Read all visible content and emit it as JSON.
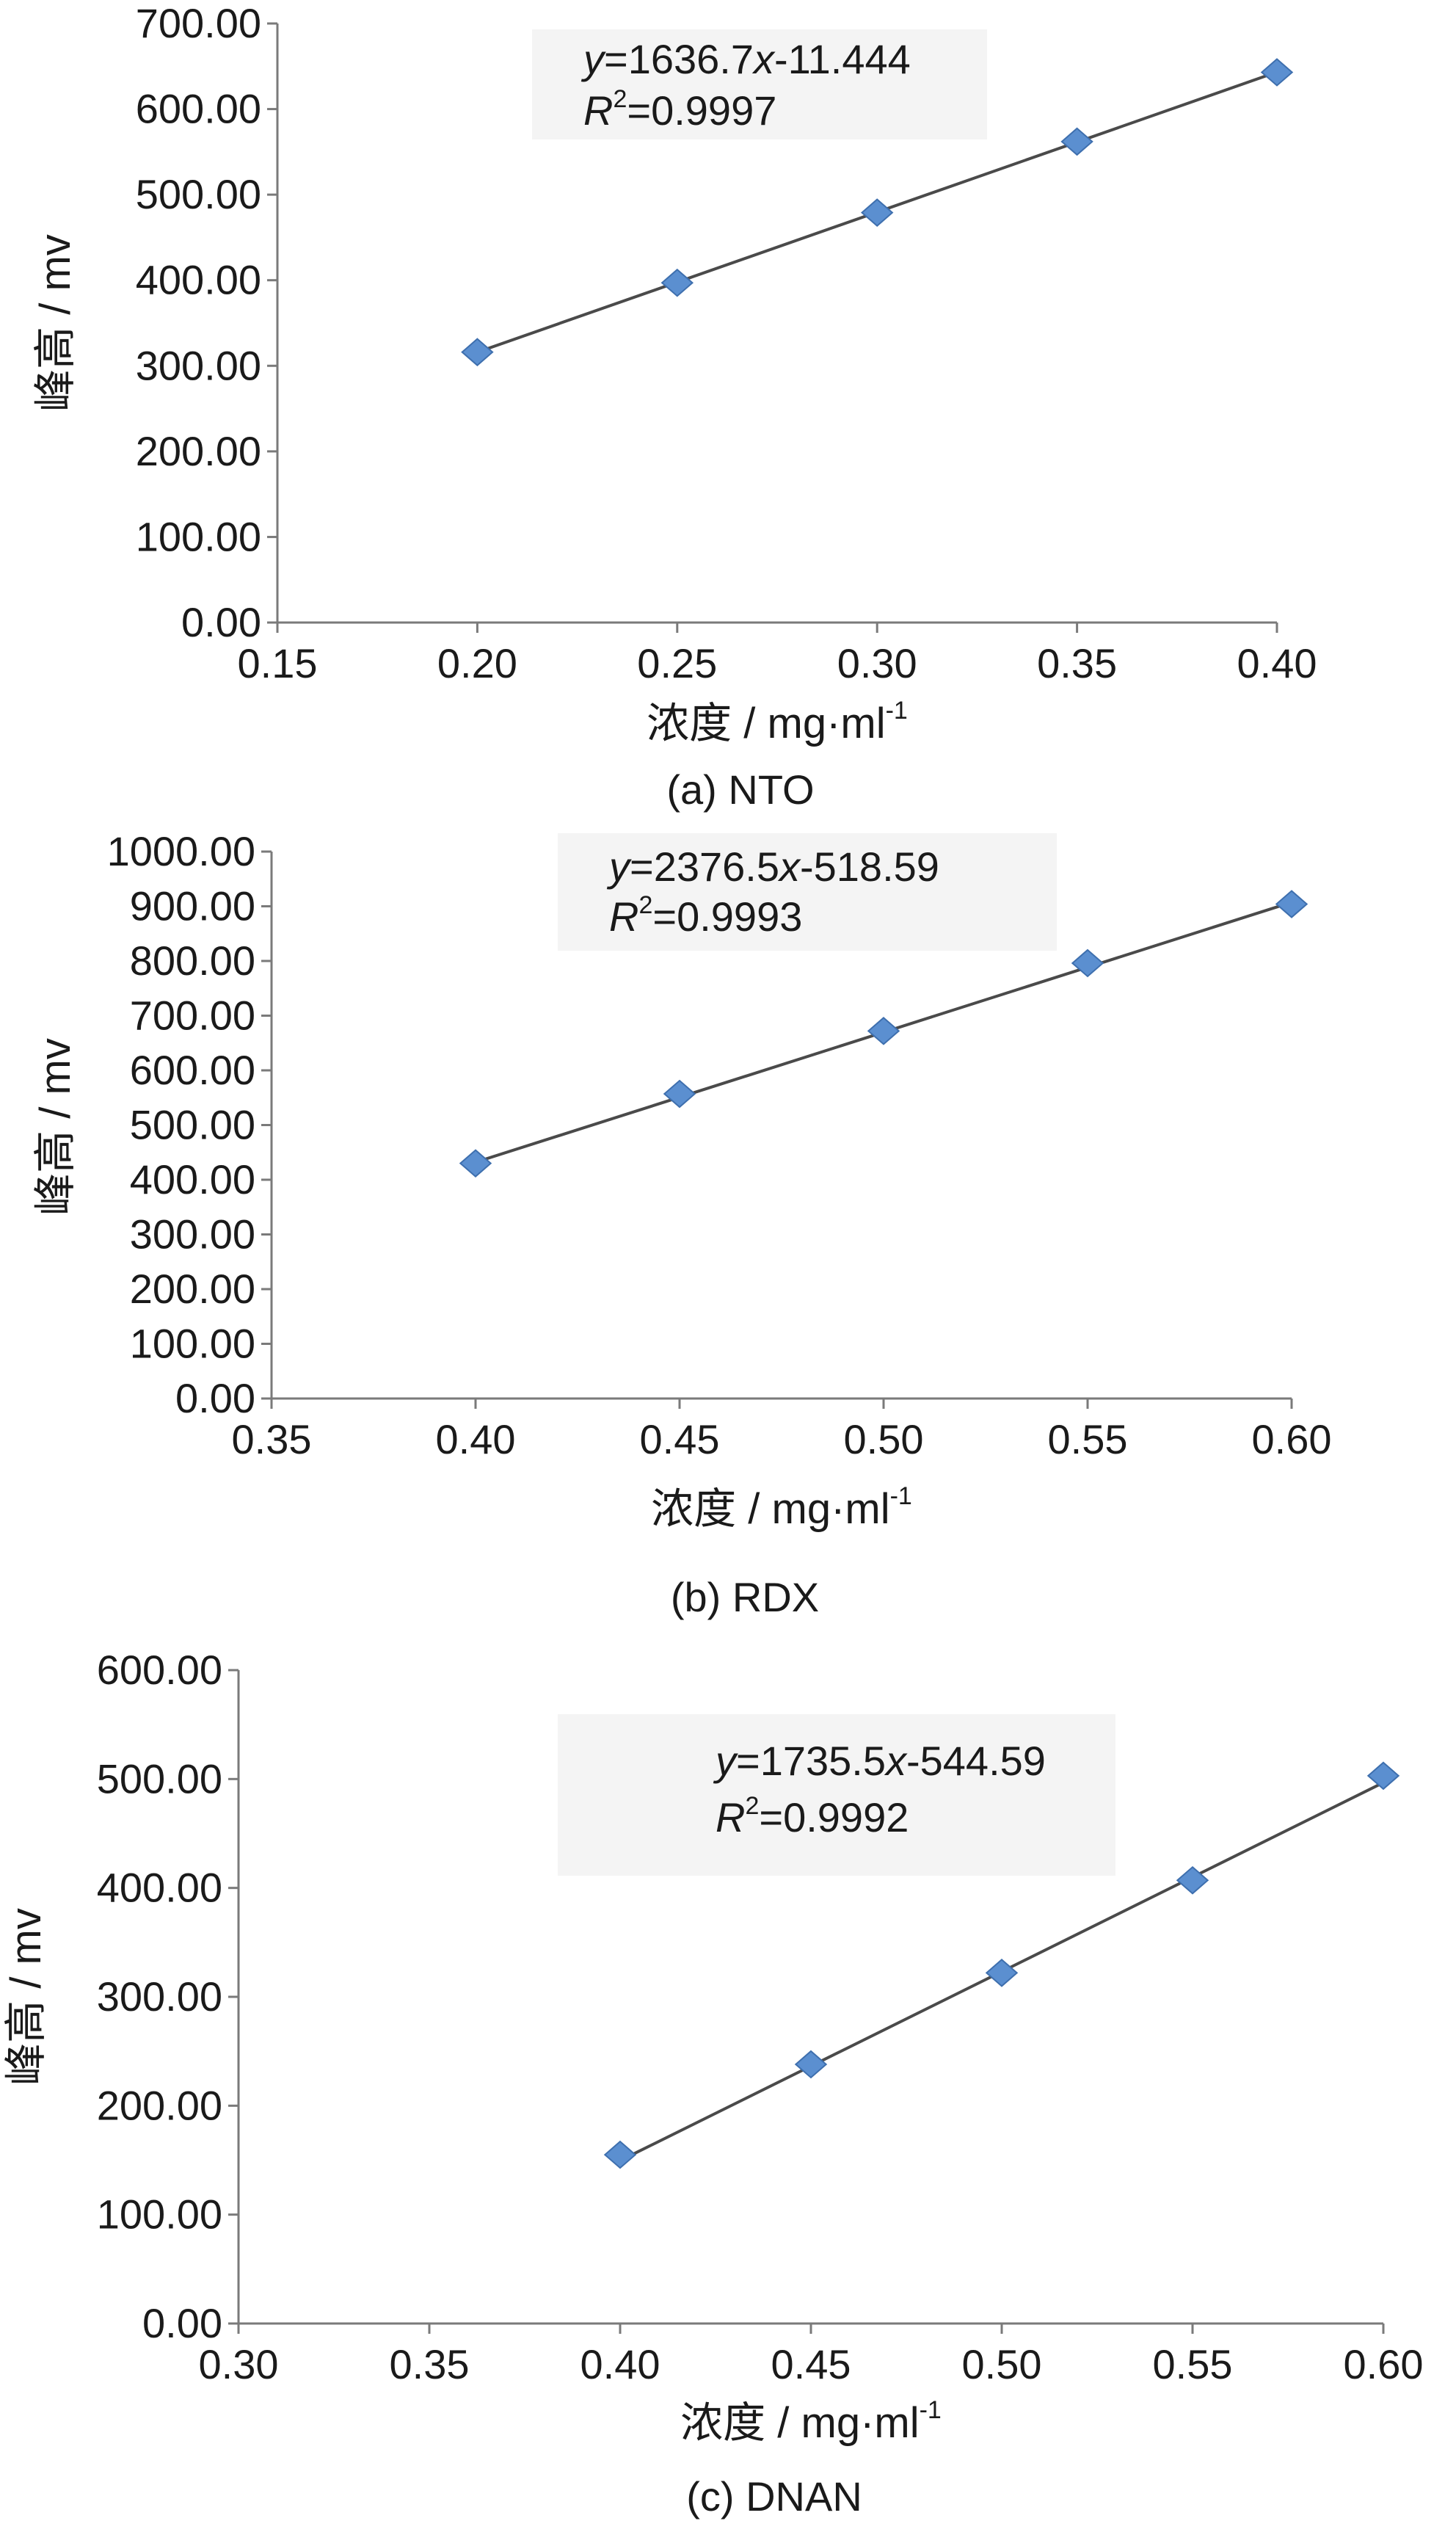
{
  "chart_data": [
    {
      "type": "scatter",
      "id": "a",
      "caption": "(a) NTO",
      "xlabel_main": "浓度 / mg·ml",
      "xlabel_sup": "-1",
      "ylabel": "峰高 / mv",
      "xlim": [
        0.15,
        0.4
      ],
      "ylim": [
        0,
        700
      ],
      "xticks": [
        "0.15",
        "0.20",
        "0.25",
        "0.30",
        "0.35",
        "0.40"
      ],
      "yticks": [
        "0.00",
        "100.00",
        "200.00",
        "300.00",
        "400.00",
        "500.00",
        "600.00",
        "700.00"
      ],
      "x": [
        0.2,
        0.25,
        0.3,
        0.35,
        0.4
      ],
      "y": [
        316,
        397,
        479,
        562,
        643
      ],
      "fit": {
        "slope": 1636.7,
        "intercept": -11.444
      },
      "eq_y": "y",
      "eq_line1": "=1636.7",
      "eq_x": "x",
      "eq_line1b": "-11.444",
      "eq_r": "R",
      "eq_r_sup": "2",
      "eq_line2": "=0.9997",
      "legend": "top-center",
      "color": "#5b8fd0"
    },
    {
      "type": "scatter",
      "id": "b",
      "caption": "(b) RDX",
      "xlabel_main": "浓度 / mg·ml",
      "xlabel_sup": "-1",
      "ylabel": "峰高 / mv",
      "xlim": [
        0.35,
        0.6
      ],
      "ylim": [
        0,
        1000
      ],
      "xticks": [
        "0.35",
        "0.40",
        "0.45",
        "0.50",
        "0.55",
        "0.60"
      ],
      "yticks": [
        "0.00",
        "100.00",
        "200.00",
        "300.00",
        "400.00",
        "500.00",
        "600.00",
        "700.00",
        "800.00",
        "900.00",
        "1000.00"
      ],
      "x": [
        0.4,
        0.45,
        0.5,
        0.55,
        0.6
      ],
      "y": [
        430,
        557,
        672,
        796,
        904
      ],
      "fit": {
        "slope": 2376.5,
        "intercept": -518.59
      },
      "eq_y": "y",
      "eq_line1": "=2376.5",
      "eq_x": "x",
      "eq_line1b": "-518.59",
      "eq_r": "R",
      "eq_r_sup": "2",
      "eq_line2": "=0.9993",
      "legend": "top-center",
      "color": "#5b8fd0"
    },
    {
      "type": "scatter",
      "id": "c",
      "caption": "(c) DNAN",
      "xlabel_main": "浓度 / mg·ml",
      "xlabel_sup": "-1",
      "ylabel": "峰高 / mv",
      "xlim": [
        0.3,
        0.6
      ],
      "ylim": [
        0,
        600
      ],
      "xticks": [
        "0.30",
        "0.35",
        "0.40",
        "0.45",
        "0.50",
        "0.55",
        "0.60"
      ],
      "yticks": [
        "0.00",
        "100.00",
        "200.00",
        "300.00",
        "400.00",
        "500.00",
        "600.00"
      ],
      "x": [
        0.4,
        0.45,
        0.5,
        0.55,
        0.6
      ],
      "y": [
        155,
        238,
        322,
        407,
        503
      ],
      "fit": {
        "slope": 1735.5,
        "intercept": -544.59
      },
      "eq_y": "y",
      "eq_line1": "=1735.5",
      "eq_x": "x",
      "eq_line1b": "-544.59",
      "eq_r": "R",
      "eq_r_sup": "2",
      "eq_line2": "=0.9992",
      "legend": "top-center",
      "color": "#5b8fd0"
    }
  ]
}
